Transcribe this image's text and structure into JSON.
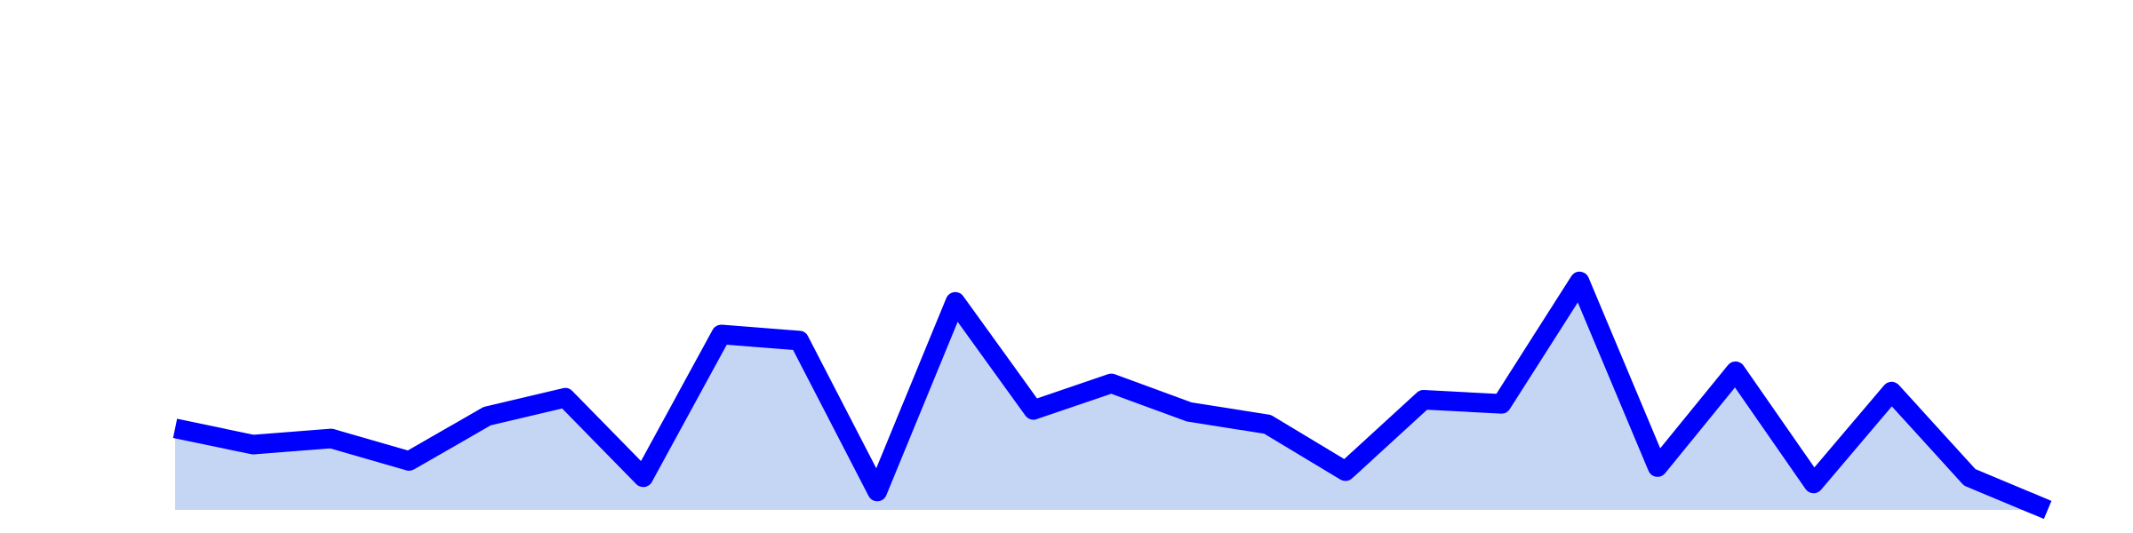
{
  "chart_data": {
    "type": "area",
    "x": [
      1,
      2,
      3,
      4,
      5,
      6,
      7,
      8,
      9,
      10,
      11,
      12,
      13,
      14,
      15,
      16,
      17,
      18,
      19,
      20,
      21,
      22,
      23,
      24,
      25
    ],
    "series": [
      {
        "values": [
          4.0,
          3.2,
          3.5,
          2.4,
          4.6,
          5.5,
          1.6,
          8.6,
          8.3,
          0.9,
          10.2,
          4.9,
          6.2,
          4.8,
          4.2,
          1.9,
          5.4,
          5.2,
          11.2,
          2.1,
          6.8,
          1.3,
          5.8,
          1.6,
          0.0
        ],
        "line_color": "#0000ff",
        "fill_color": "#c5d6f5"
      }
    ],
    "ylim": [
      0,
      25
    ],
    "grid": false,
    "axes_visible": false,
    "legend": "none",
    "title": "",
    "xlabel": "",
    "ylabel": ""
  }
}
